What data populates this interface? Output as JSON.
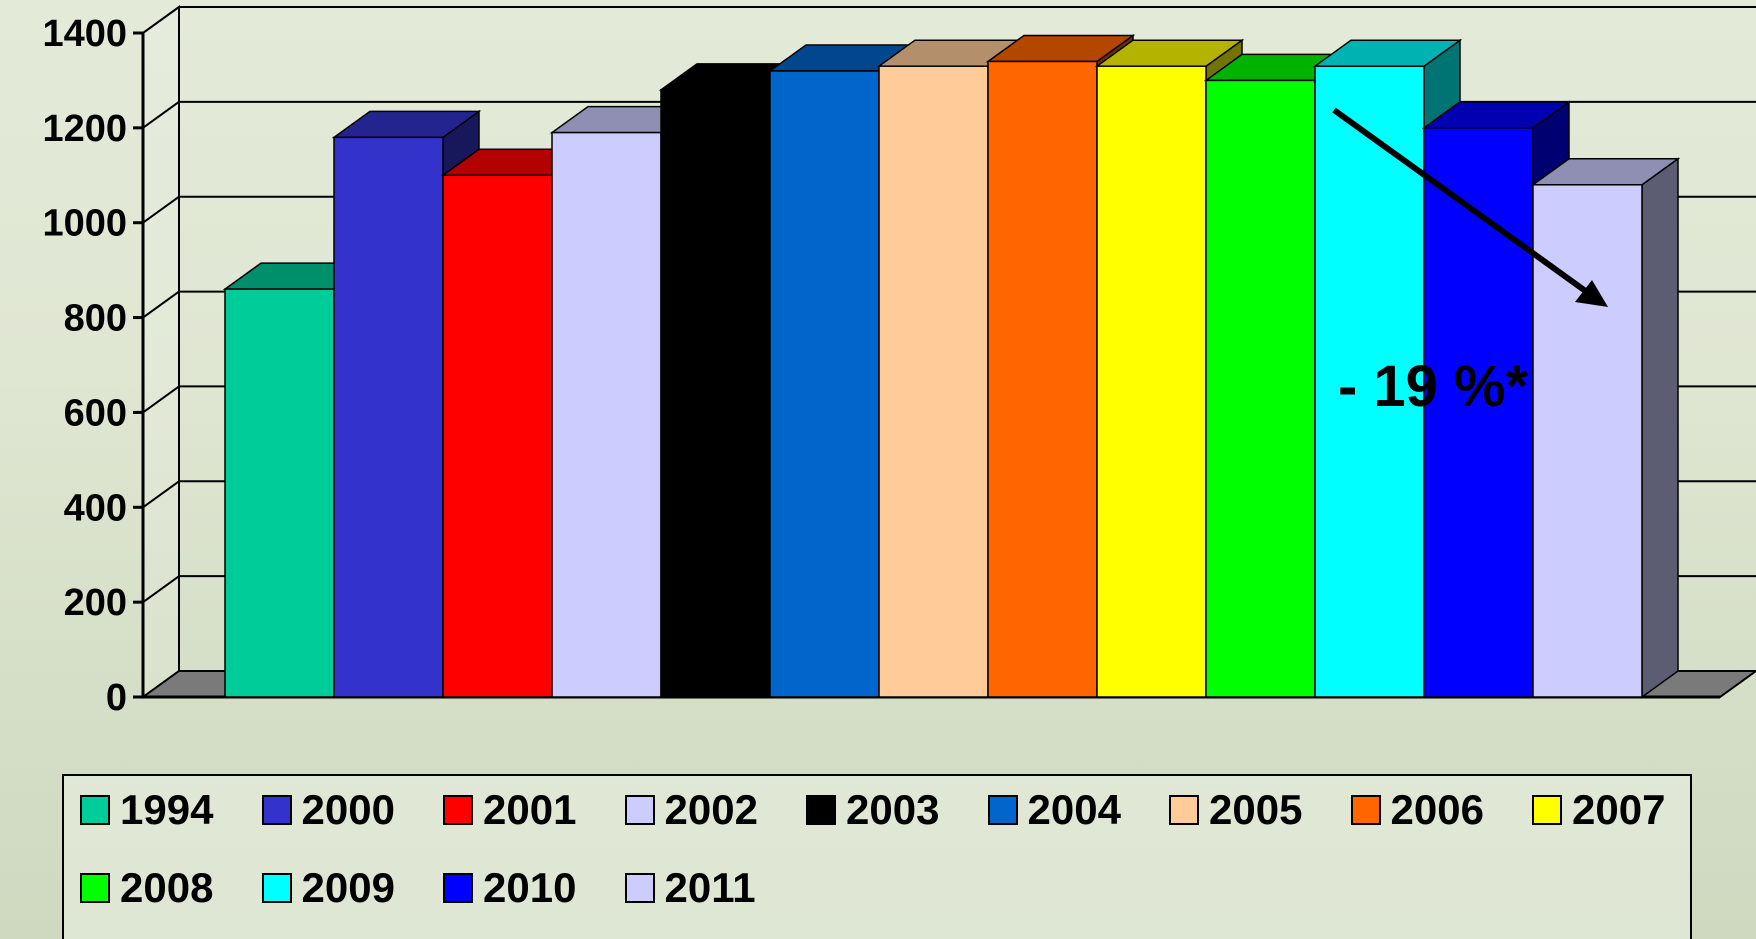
{
  "chart_data": {
    "type": "bar",
    "categories": [
      "1994",
      "2000",
      "2001",
      "2002",
      "2003",
      "2004",
      "2005",
      "2006",
      "2007",
      "2008",
      "2009",
      "2010",
      "2011"
    ],
    "values": [
      860,
      1180,
      1100,
      1190,
      1280,
      1320,
      1330,
      1340,
      1330,
      1300,
      1330,
      1200,
      1080
    ],
    "colors": [
      "#00cc99",
      "#3333cc",
      "#ff0000",
      "#ccccff",
      "#000000",
      "#0066cc",
      "#ffcc99",
      "#ff6600",
      "#ffff00",
      "#00ff00",
      "#00ffff",
      "#0000ff",
      "#ccccff"
    ],
    "yticks": [
      "0",
      "200",
      "400",
      "600",
      "800",
      "1000",
      "1200",
      "1400"
    ],
    "ylim": [
      0,
      1400
    ],
    "grid": true,
    "legend_position": "bottom",
    "annotation": "- 19 %*"
  }
}
